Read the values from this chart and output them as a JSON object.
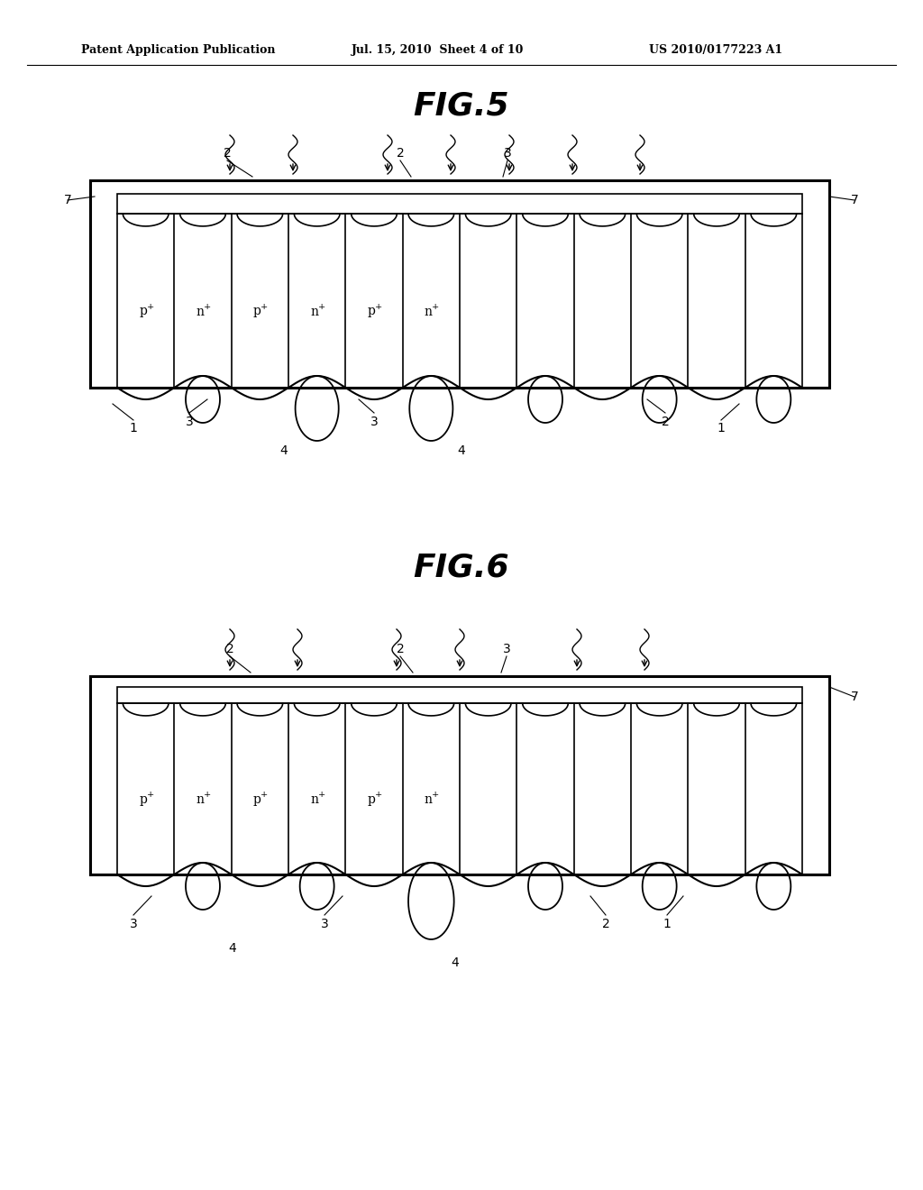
{
  "header_left": "Patent Application Publication",
  "header_mid": "Jul. 15, 2010  Sheet 4 of 10",
  "header_right": "US 2010/0177223 A1",
  "fig5_label": "FIG.5",
  "fig6_label": "FIG.6",
  "background_color": "#ffffff",
  "line_color": "#000000",
  "text_color": "#000000",
  "doping_labels_fig5": [
    "p+",
    "n+",
    "p+",
    "n+",
    "p+",
    "n+"
  ],
  "doping_labels_fig6": [
    "p+",
    "n+",
    "p+",
    "n+",
    "p+",
    "n+"
  ]
}
